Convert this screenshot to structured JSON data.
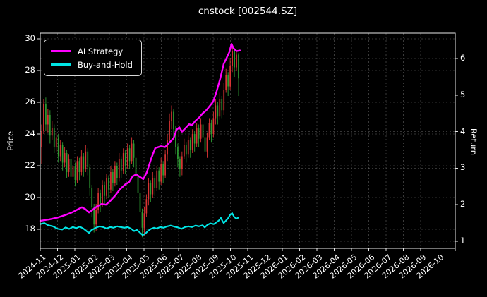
{
  "title": "cnstock [002544.SZ]",
  "legend": {
    "items": [
      {
        "label": "AI Strategy",
        "color": "#ff00ff"
      },
      {
        "label": "Buy-and-Hold",
        "color": "#00e5e5"
      }
    ]
  },
  "colors": {
    "background": "#000000",
    "frame": "#e8e8e8",
    "grid": "#6a6a6a",
    "text": "#ffffff",
    "up_candle": "#d93434",
    "down_candle": "#2e9e33",
    "ai_line": "#ff00ff",
    "bh_line": "#00e5e5"
  },
  "chart_data": {
    "type": "candlestick+line",
    "title": "cnstock [002544.SZ]",
    "price_axis": {
      "label": "Price",
      "ticks": [
        18,
        20,
        22,
        24,
        26,
        28,
        30
      ],
      "range_shown": [
        16.8,
        30.4
      ]
    },
    "return_axis": {
      "label": "Return",
      "ticks": [
        1,
        2,
        3,
        4,
        5,
        6
      ],
      "range_shown": [
        0.81,
        6.69
      ]
    },
    "x_tick_labels": [
      "2024-11",
      "2024-12",
      "2025-01",
      "2025-02",
      "2025-03",
      "2025-04",
      "2025-05",
      "2025-06",
      "2025-07",
      "2025-08",
      "2025-09",
      "2025-10",
      "2025-11",
      "2025-12",
      "2026-01",
      "2026-02",
      "2026-03",
      "2026-04",
      "2026-05",
      "2026-06",
      "2026-07",
      "2026-08",
      "2026-09",
      "2026-10"
    ],
    "grid": "dashed both axes",
    "legend_position": "upper left",
    "candles_note": "OHLC, red=up green=down, data spans 2024-11 to mid 2025-10",
    "candle_span_months": [
      0.08,
      11.47
    ],
    "candles_ohlc": [
      [
        23.2,
        24.6,
        22.1,
        24.2
      ],
      [
        24.2,
        26.2,
        24.0,
        25.9
      ],
      [
        25.9,
        26.3,
        24.2,
        24.6
      ],
      [
        24.6,
        25.6,
        24.1,
        25.2
      ],
      [
        25.2,
        25.5,
        23.4,
        23.9
      ],
      [
        23.9,
        24.8,
        23.6,
        24.4
      ],
      [
        24.4,
        24.6,
        22.8,
        23.2
      ],
      [
        23.2,
        24.1,
        22.9,
        23.8
      ],
      [
        23.8,
        24.0,
        22.2,
        22.6
      ],
      [
        22.6,
        23.6,
        22.3,
        23.3
      ],
      [
        23.3,
        23.5,
        21.7,
        22.2
      ],
      [
        22.2,
        23.2,
        21.9,
        22.8
      ],
      [
        22.8,
        23.0,
        21.2,
        21.6
      ],
      [
        21.6,
        22.7,
        21.3,
        22.4
      ],
      [
        22.4,
        22.6,
        20.9,
        21.3
      ],
      [
        21.3,
        22.4,
        21.0,
        22.0
      ],
      [
        22.0,
        22.2,
        20.7,
        21.1
      ],
      [
        21.1,
        22.6,
        20.9,
        22.3
      ],
      [
        22.3,
        22.5,
        21.1,
        21.6
      ],
      [
        21.6,
        23.0,
        21.4,
        22.6
      ],
      [
        22.6,
        22.8,
        21.3,
        21.8
      ],
      [
        21.8,
        23.3,
        21.6,
        22.9
      ],
      [
        22.9,
        23.1,
        21.4,
        21.9
      ],
      [
        21.9,
        22.1,
        20.1,
        20.6
      ],
      [
        20.6,
        20.8,
        18.8,
        19.4
      ],
      [
        19.4,
        19.6,
        17.8,
        18.3
      ],
      [
        18.3,
        19.6,
        17.9,
        19.2
      ],
      [
        19.2,
        20.6,
        19.0,
        20.3
      ],
      [
        20.3,
        20.5,
        19.1,
        19.6
      ],
      [
        19.6,
        21.1,
        19.4,
        20.8
      ],
      [
        20.8,
        21.0,
        19.6,
        20.1
      ],
      [
        20.1,
        21.5,
        19.9,
        21.2
      ],
      [
        21.2,
        21.4,
        20.0,
        20.5
      ],
      [
        20.5,
        22.0,
        20.3,
        21.6
      ],
      [
        21.6,
        21.8,
        20.4,
        20.9
      ],
      [
        20.9,
        22.3,
        20.7,
        22.0
      ],
      [
        22.0,
        22.2,
        20.8,
        21.2
      ],
      [
        21.2,
        22.8,
        21.0,
        22.4
      ],
      [
        22.4,
        22.6,
        21.2,
        21.7
      ],
      [
        21.7,
        23.1,
        21.5,
        22.8
      ],
      [
        22.8,
        23.0,
        21.5,
        22.0
      ],
      [
        22.0,
        23.4,
        21.8,
        23.1
      ],
      [
        23.1,
        23.3,
        21.8,
        22.3
      ],
      [
        22.3,
        23.8,
        22.1,
        23.4
      ],
      [
        23.4,
        23.6,
        21.9,
        22.5
      ],
      [
        22.5,
        22.7,
        20.9,
        21.4
      ],
      [
        21.4,
        21.6,
        19.8,
        20.3
      ],
      [
        20.3,
        20.5,
        18.6,
        19.1
      ],
      [
        19.1,
        19.3,
        17.5,
        18.1
      ],
      [
        18.1,
        19.4,
        17.6,
        19.0
      ],
      [
        19.0,
        20.2,
        18.8,
        19.9
      ],
      [
        19.9,
        21.2,
        19.5,
        20.9
      ],
      [
        20.9,
        21.1,
        19.7,
        20.2
      ],
      [
        20.2,
        21.6,
        20.0,
        21.2
      ],
      [
        21.2,
        21.4,
        20.1,
        20.6
      ],
      [
        20.6,
        22.0,
        20.4,
        21.7
      ],
      [
        21.7,
        21.9,
        20.5,
        21.0
      ],
      [
        21.0,
        22.5,
        20.8,
        22.1
      ],
      [
        22.1,
        22.3,
        20.9,
        21.4
      ],
      [
        21.4,
        23.0,
        21.2,
        22.7
      ],
      [
        22.7,
        24.0,
        22.3,
        23.6
      ],
      [
        23.6,
        25.3,
        23.4,
        24.8
      ],
      [
        24.8,
        25.8,
        24.3,
        25.4
      ],
      [
        25.4,
        25.6,
        23.8,
        24.3
      ],
      [
        24.3,
        24.5,
        22.7,
        23.2
      ],
      [
        23.2,
        23.4,
        21.9,
        22.4
      ],
      [
        22.4,
        22.6,
        21.3,
        21.8
      ],
      [
        21.8,
        22.9,
        21.4,
        22.6
      ],
      [
        22.6,
        23.7,
        22.4,
        23.3
      ],
      [
        23.3,
        23.5,
        22.2,
        22.7
      ],
      [
        22.7,
        23.9,
        22.5,
        23.6
      ],
      [
        23.6,
        23.8,
        22.5,
        23.0
      ],
      [
        23.0,
        24.3,
        22.8,
        24.0
      ],
      [
        24.0,
        24.2,
        22.9,
        23.4
      ],
      [
        23.4,
        24.7,
        23.2,
        24.4
      ],
      [
        24.4,
        24.6,
        23.2,
        23.7
      ],
      [
        23.7,
        25.0,
        23.5,
        24.6
      ],
      [
        24.6,
        24.8,
        23.3,
        23.8
      ],
      [
        23.8,
        24.0,
        22.4,
        22.9
      ],
      [
        22.9,
        24.1,
        22.5,
        23.8
      ],
      [
        23.8,
        25.0,
        23.6,
        24.7
      ],
      [
        24.7,
        24.9,
        23.5,
        24.0
      ],
      [
        24.0,
        25.4,
        23.8,
        25.0
      ],
      [
        25.0,
        26.2,
        24.6,
        25.8
      ],
      [
        25.8,
        26.0,
        24.6,
        25.1
      ],
      [
        25.1,
        26.6,
        24.9,
        26.2
      ],
      [
        26.2,
        26.4,
        25.0,
        25.5
      ],
      [
        25.5,
        27.2,
        25.2,
        26.8
      ],
      [
        26.8,
        28.1,
        26.6,
        27.7
      ],
      [
        27.7,
        27.9,
        26.4,
        27.0
      ],
      [
        27.0,
        28.8,
        26.8,
        28.3
      ],
      [
        28.3,
        29.5,
        27.9,
        29.2
      ],
      [
        29.2,
        29.4,
        27.6,
        28.2
      ],
      [
        28.2,
        29.3,
        28.0,
        29.0
      ],
      [
        29.0,
        29.1,
        26.4,
        27.5
      ]
    ],
    "series": [
      {
        "name": "AI Strategy",
        "axis": "return",
        "color": "#ff00ff",
        "points": [
          [
            0.0,
            1.56
          ],
          [
            0.53,
            1.6
          ],
          [
            1.02,
            1.65
          ],
          [
            1.51,
            1.73
          ],
          [
            1.88,
            1.8
          ],
          [
            2.16,
            1.87
          ],
          [
            2.41,
            1.93
          ],
          [
            2.61,
            1.88
          ],
          [
            2.82,
            1.79
          ],
          [
            3.02,
            1.86
          ],
          [
            3.27,
            1.95
          ],
          [
            3.55,
            2.02
          ],
          [
            3.8,
            2.0
          ],
          [
            4.04,
            2.1
          ],
          [
            4.33,
            2.25
          ],
          [
            4.61,
            2.42
          ],
          [
            4.9,
            2.55
          ],
          [
            5.14,
            2.62
          ],
          [
            5.35,
            2.78
          ],
          [
            5.55,
            2.83
          ],
          [
            5.76,
            2.76
          ],
          [
            5.96,
            2.7
          ],
          [
            6.16,
            2.88
          ],
          [
            6.41,
            3.25
          ],
          [
            6.65,
            3.55
          ],
          [
            6.98,
            3.6
          ],
          [
            7.22,
            3.58
          ],
          [
            7.47,
            3.7
          ],
          [
            7.71,
            3.82
          ],
          [
            7.88,
            4.05
          ],
          [
            8.04,
            4.12
          ],
          [
            8.2,
            4.0
          ],
          [
            8.41,
            4.1
          ],
          [
            8.61,
            4.2
          ],
          [
            8.78,
            4.18
          ],
          [
            8.98,
            4.3
          ],
          [
            9.18,
            4.38
          ],
          [
            9.39,
            4.5
          ],
          [
            9.59,
            4.58
          ],
          [
            9.8,
            4.7
          ],
          [
            10.0,
            4.82
          ],
          [
            10.2,
            5.1
          ],
          [
            10.41,
            5.45
          ],
          [
            10.61,
            5.85
          ],
          [
            10.78,
            6.02
          ],
          [
            10.94,
            6.18
          ],
          [
            11.06,
            6.4
          ],
          [
            11.18,
            6.28
          ],
          [
            11.35,
            6.2
          ],
          [
            11.55,
            6.22
          ]
        ]
      },
      {
        "name": "Buy-and-Hold",
        "axis": "return",
        "color": "#00e5e5",
        "points": [
          [
            0.0,
            1.47
          ],
          [
            0.24,
            1.5
          ],
          [
            0.45,
            1.44
          ],
          [
            0.73,
            1.41
          ],
          [
            1.02,
            1.34
          ],
          [
            1.27,
            1.32
          ],
          [
            1.47,
            1.38
          ],
          [
            1.67,
            1.34
          ],
          [
            1.88,
            1.39
          ],
          [
            2.08,
            1.36
          ],
          [
            2.29,
            1.4
          ],
          [
            2.49,
            1.35
          ],
          [
            2.65,
            1.29
          ],
          [
            2.82,
            1.23
          ],
          [
            2.98,
            1.31
          ],
          [
            3.22,
            1.37
          ],
          [
            3.43,
            1.41
          ],
          [
            3.63,
            1.39
          ],
          [
            3.84,
            1.35
          ],
          [
            4.04,
            1.39
          ],
          [
            4.24,
            1.37
          ],
          [
            4.45,
            1.41
          ],
          [
            4.65,
            1.39
          ],
          [
            4.86,
            1.37
          ],
          [
            5.06,
            1.39
          ],
          [
            5.27,
            1.34
          ],
          [
            5.43,
            1.28
          ],
          [
            5.59,
            1.31
          ],
          [
            5.76,
            1.24
          ],
          [
            5.92,
            1.17
          ],
          [
            6.08,
            1.21
          ],
          [
            6.24,
            1.29
          ],
          [
            6.41,
            1.34
          ],
          [
            6.57,
            1.37
          ],
          [
            6.73,
            1.35
          ],
          [
            6.94,
            1.39
          ],
          [
            7.14,
            1.37
          ],
          [
            7.35,
            1.41
          ],
          [
            7.55,
            1.43
          ],
          [
            7.76,
            1.4
          ],
          [
            7.96,
            1.38
          ],
          [
            8.16,
            1.34
          ],
          [
            8.37,
            1.39
          ],
          [
            8.57,
            1.41
          ],
          [
            8.78,
            1.39
          ],
          [
            8.98,
            1.43
          ],
          [
            9.18,
            1.41
          ],
          [
            9.39,
            1.44
          ],
          [
            9.51,
            1.38
          ],
          [
            9.67,
            1.45
          ],
          [
            9.84,
            1.49
          ],
          [
            10.04,
            1.47
          ],
          [
            10.16,
            1.51
          ],
          [
            10.33,
            1.57
          ],
          [
            10.45,
            1.64
          ],
          [
            10.53,
            1.56
          ],
          [
            10.61,
            1.5
          ],
          [
            10.73,
            1.56
          ],
          [
            10.86,
            1.63
          ],
          [
            10.98,
            1.72
          ],
          [
            11.1,
            1.77
          ],
          [
            11.22,
            1.66
          ],
          [
            11.35,
            1.62
          ],
          [
            11.47,
            1.65
          ]
        ]
      }
    ]
  }
}
